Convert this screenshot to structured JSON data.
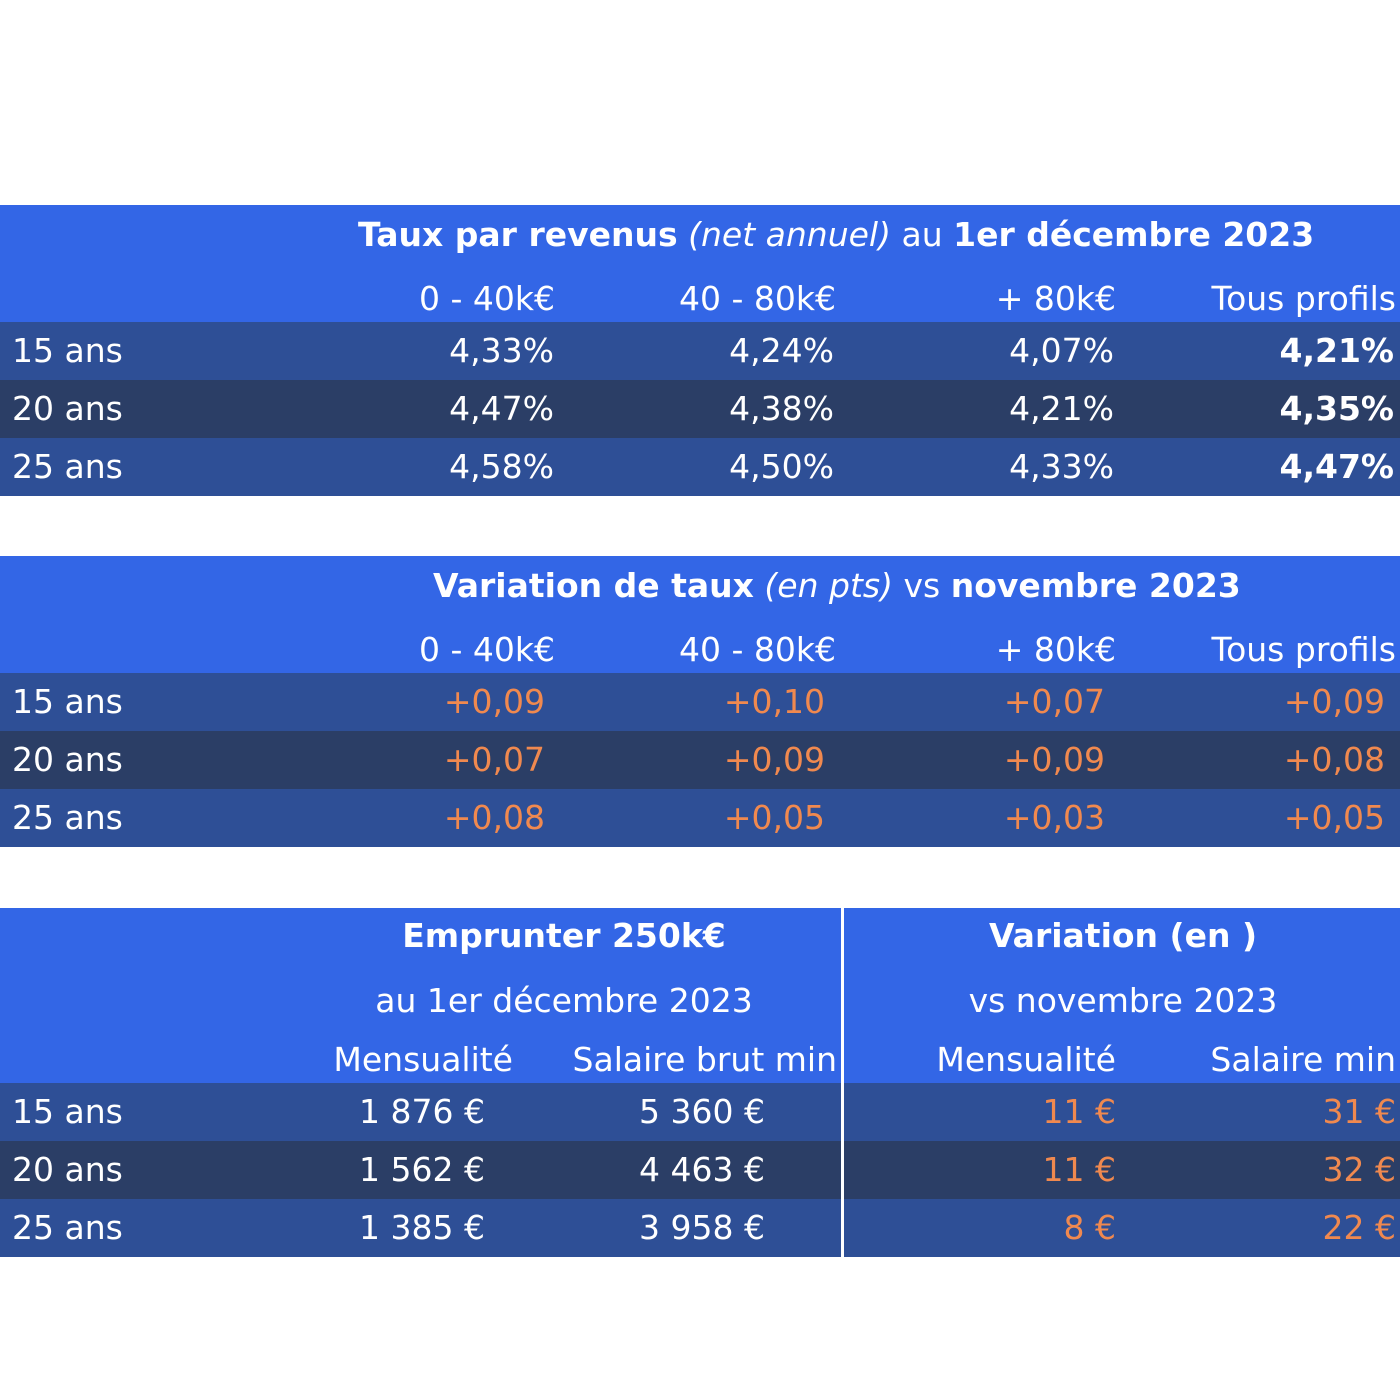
{
  "rates_table": {
    "title_bold_1": "Taux par revenus",
    "title_italic": "(net annuel)",
    "title_plain": "au",
    "title_bold_2": "1er décembre 2023",
    "columns": [
      "0 - 40k€",
      "40 - 80k€",
      "+ 80k€",
      "Tous profils"
    ],
    "rows": [
      {
        "label": "15 ans",
        "values": [
          "4,33%",
          "4,24%",
          "4,07%",
          "4,21%"
        ]
      },
      {
        "label": "20 ans",
        "values": [
          "4,47%",
          "4,38%",
          "4,21%",
          "4,35%"
        ]
      },
      {
        "label": "25 ans",
        "values": [
          "4,58%",
          "4,50%",
          "4,33%",
          "4,47%"
        ]
      }
    ]
  },
  "variation_table": {
    "title_bold_1": "Variation de taux",
    "title_italic": "(en pts)",
    "title_plain": "vs",
    "title_bold_2": "novembre 2023",
    "columns": [
      "0 - 40k€",
      "40 - 80k€",
      "+ 80k€",
      "Tous profils"
    ],
    "rows": [
      {
        "label": "15 ans",
        "values": [
          "+0,09",
          "+0,10",
          "+0,07",
          "+0,09"
        ]
      },
      {
        "label": "20 ans",
        "values": [
          "+0,07",
          "+0,09",
          "+0,09",
          "+0,08"
        ]
      },
      {
        "label": "25 ans",
        "values": [
          "+0,08",
          "+0,05",
          "+0,03",
          "+0,05"
        ]
      }
    ]
  },
  "loan_table": {
    "left_title": "Emprunter 250k€",
    "left_subtitle": "au 1er décembre 2023",
    "right_title": "Variation (en )",
    "right_subtitle": "vs novembre 2023",
    "columns": [
      "Mensualité",
      "Salaire brut min",
      "Mensualité",
      "Salaire min"
    ],
    "rows": [
      {
        "label": "15 ans",
        "values": [
          "1 876 €",
          "5 360 €",
          "11 €",
          "31 €"
        ]
      },
      {
        "label": "20 ans",
        "values": [
          "1 562 €",
          "4 463 €",
          "11 €",
          "32 €"
        ]
      },
      {
        "label": "25 ans",
        "values": [
          "1 385 €",
          "3 958 €",
          "8 €",
          "22 €"
        ]
      }
    ]
  },
  "colors": {
    "header_blue": "#3366e6",
    "row_light": "#2e4f96",
    "row_dark": "#2b3e66",
    "variation_orange": "#f0894f"
  }
}
